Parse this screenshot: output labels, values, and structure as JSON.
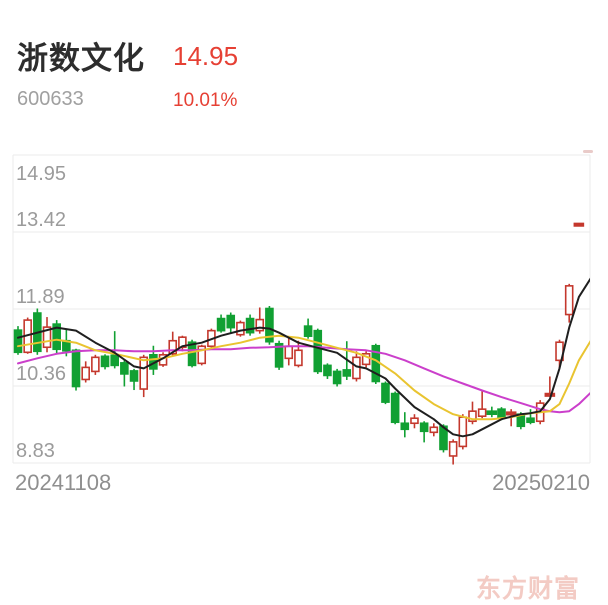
{
  "header": {
    "stock_name": "浙数文化",
    "price": "14.95",
    "code": "600633",
    "change_percent": "10.01%"
  },
  "watermark_text": "东方财富",
  "colors": {
    "up": "#c4382d",
    "down": "#11a033",
    "ma5": "#1f1f1f",
    "ma10": "#e9c430",
    "ma20": "#cb3fcb",
    "grid": "#ebebeb",
    "axis_text": "#9b9b9b",
    "price_red": "#e64034",
    "watermark": "#f3cbc4",
    "faint_marker": "#e9cbc9"
  },
  "chart_data": {
    "type": "candlestick",
    "title": "日K 浙数文化 600633",
    "x_axis": {
      "left_label": "20241108",
      "right_label": "20250210"
    },
    "y_axis": {
      "ticks": [
        "14.95",
        "13.42",
        "11.89",
        "10.36",
        "8.83"
      ],
      "min": 8.83,
      "max": 14.95
    },
    "grid": true,
    "candles_ohlc": [
      [
        11.47,
        11.55,
        10.98,
        11.03
      ],
      [
        11.03,
        11.72,
        11.0,
        11.67
      ],
      [
        11.81,
        11.9,
        10.98,
        11.05
      ],
      [
        11.13,
        11.73,
        11.03,
        11.53
      ],
      [
        11.59,
        11.67,
        11.0,
        11.09
      ],
      [
        11.26,
        11.5,
        10.95,
        11.06
      ],
      [
        11.07,
        11.1,
        10.27,
        10.35
      ],
      [
        10.49,
        10.85,
        10.43,
        10.73
      ],
      [
        10.65,
        10.98,
        10.58,
        10.93
      ],
      [
        10.95,
        10.99,
        10.69,
        10.75
      ],
      [
        10.97,
        11.45,
        10.71,
        10.77
      ],
      [
        10.82,
        10.88,
        10.35,
        10.6
      ],
      [
        10.66,
        10.7,
        10.28,
        10.46
      ],
      [
        10.3,
        10.98,
        10.14,
        10.93
      ],
      [
        10.98,
        11.16,
        10.58,
        10.7
      ],
      [
        10.78,
        11.03,
        10.74,
        10.98
      ],
      [
        11.0,
        11.44,
        10.96,
        11.26
      ],
      [
        11.13,
        11.36,
        11.05,
        11.33
      ],
      [
        11.23,
        11.28,
        10.73,
        10.77
      ],
      [
        10.81,
        11.18,
        10.77,
        11.15
      ],
      [
        11.15,
        11.5,
        11.1,
        11.46
      ],
      [
        11.7,
        11.78,
        11.42,
        11.46
      ],
      [
        11.76,
        11.82,
        11.4,
        11.52
      ],
      [
        11.38,
        11.66,
        11.34,
        11.62
      ],
      [
        11.7,
        11.78,
        11.36,
        11.42
      ],
      [
        11.46,
        11.92,
        11.4,
        11.68
      ],
      [
        11.9,
        11.95,
        11.18,
        11.24
      ],
      [
        11.2,
        11.26,
        10.68,
        10.74
      ],
      [
        10.91,
        11.32,
        10.77,
        11.15
      ],
      [
        10.77,
        11.26,
        10.73,
        11.07
      ],
      [
        11.55,
        11.7,
        11.3,
        11.35
      ],
      [
        11.46,
        11.5,
        10.6,
        10.65
      ],
      [
        10.77,
        10.81,
        10.5,
        10.57
      ],
      [
        10.65,
        10.7,
        10.35,
        10.41
      ],
      [
        10.68,
        11.25,
        10.48,
        10.56
      ],
      [
        10.51,
        11.05,
        10.45,
        10.93
      ],
      [
        10.79,
        11.05,
        10.73,
        11.0
      ],
      [
        11.16,
        11.2,
        10.4,
        10.45
      ],
      [
        10.41,
        10.45,
        10.0,
        10.04
      ],
      [
        10.21,
        10.25,
        9.6,
        9.64
      ],
      [
        9.62,
        9.84,
        9.34,
        9.5
      ],
      [
        9.62,
        9.8,
        9.52,
        9.72
      ],
      [
        9.62,
        9.66,
        9.24,
        9.46
      ],
      [
        9.44,
        9.62,
        9.36,
        9.54
      ],
      [
        9.56,
        9.6,
        9.04,
        9.1
      ],
      [
        8.97,
        9.3,
        8.8,
        9.25
      ],
      [
        9.16,
        9.8,
        9.1,
        9.74
      ],
      [
        9.66,
        10.05,
        9.6,
        9.86
      ],
      [
        9.76,
        10.27,
        9.72,
        9.9
      ],
      [
        9.86,
        9.95,
        9.74,
        9.8
      ],
      [
        9.9,
        9.94,
        9.68,
        9.72
      ],
      [
        9.82,
        9.9,
        9.56,
        9.84
      ],
      [
        9.8,
        9.84,
        9.5,
        9.56
      ],
      [
        9.72,
        9.9,
        9.6,
        9.64
      ],
      [
        9.66,
        10.08,
        9.6,
        10.02
      ],
      [
        10.18,
        10.55,
        10.15,
        10.21
      ],
      [
        10.87,
        11.28,
        10.71,
        11.23
      ],
      [
        11.78,
        12.39,
        11.62,
        12.35
      ],
      [
        13.59,
        13.59,
        13.59,
        13.59
      ]
    ],
    "ma_lines": [
      {
        "name": "ma-20",
        "color_key": "ma20",
        "points": [
          [
            0,
            10.81
          ],
          [
            2,
            10.91
          ],
          [
            4,
            11.0
          ],
          [
            6,
            11.05
          ],
          [
            8,
            11.07
          ],
          [
            10,
            11.07
          ],
          [
            12,
            11.05
          ],
          [
            14,
            11.05
          ],
          [
            16,
            11.07
          ],
          [
            18,
            11.07
          ],
          [
            20,
            11.09
          ],
          [
            22,
            11.09
          ],
          [
            24,
            11.12
          ],
          [
            26,
            11.13
          ],
          [
            28,
            11.15
          ],
          [
            30,
            11.15
          ],
          [
            32,
            11.12
          ],
          [
            34,
            11.09
          ],
          [
            36,
            11.07
          ],
          [
            38,
            11.0
          ],
          [
            40,
            10.87
          ],
          [
            42,
            10.71
          ],
          [
            44,
            10.55
          ],
          [
            46,
            10.41
          ],
          [
            48,
            10.27
          ],
          [
            50,
            10.14
          ],
          [
            52,
            10.02
          ],
          [
            54,
            9.9
          ],
          [
            55,
            9.86
          ],
          [
            56,
            9.84
          ],
          [
            57,
            9.86
          ],
          [
            58,
            10.0
          ],
          [
            59.3,
            10.24
          ]
        ]
      },
      {
        "name": "ma-10",
        "color_key": "ma10",
        "points": [
          [
            0,
            11.15
          ],
          [
            4,
            11.28
          ],
          [
            6,
            11.22
          ],
          [
            8,
            11.07
          ],
          [
            10,
            11.0
          ],
          [
            13,
            10.87
          ],
          [
            15,
            10.91
          ],
          [
            17,
            11.0
          ],
          [
            19,
            11.07
          ],
          [
            21,
            11.15
          ],
          [
            23,
            11.22
          ],
          [
            25,
            11.32
          ],
          [
            27,
            11.36
          ],
          [
            29,
            11.32
          ],
          [
            31,
            11.22
          ],
          [
            33,
            11.12
          ],
          [
            35,
            11.02
          ],
          [
            37,
            10.87
          ],
          [
            39,
            10.61
          ],
          [
            41,
            10.27
          ],
          [
            43,
            10.0
          ],
          [
            45,
            9.8
          ],
          [
            47,
            9.7
          ],
          [
            49,
            9.7
          ],
          [
            51,
            9.74
          ],
          [
            53,
            9.82
          ],
          [
            55,
            9.86
          ],
          [
            56,
            10.0
          ],
          [
            57,
            10.41
          ],
          [
            58,
            10.87
          ],
          [
            59.3,
            11.28
          ]
        ]
      },
      {
        "name": "ma-5",
        "color_key": "ma5",
        "points": [
          [
            0,
            11.32
          ],
          [
            4,
            11.52
          ],
          [
            6,
            11.46
          ],
          [
            8,
            11.22
          ],
          [
            10,
            11.02
          ],
          [
            12,
            10.75
          ],
          [
            13,
            10.71
          ],
          [
            15,
            10.91
          ],
          [
            17,
            11.15
          ],
          [
            19,
            11.22
          ],
          [
            21,
            11.36
          ],
          [
            23,
            11.46
          ],
          [
            25,
            11.52
          ],
          [
            26,
            11.5
          ],
          [
            27,
            11.42
          ],
          [
            29,
            11.22
          ],
          [
            31,
            11.12
          ],
          [
            33,
            11.02
          ],
          [
            35,
            10.75
          ],
          [
            36,
            10.71
          ],
          [
            38,
            10.51
          ],
          [
            39,
            10.31
          ],
          [
            41,
            9.94
          ],
          [
            43,
            9.7
          ],
          [
            44,
            9.54
          ],
          [
            45,
            9.4
          ],
          [
            46,
            9.36
          ],
          [
            47,
            9.4
          ],
          [
            49,
            9.6
          ],
          [
            50,
            9.7
          ],
          [
            52,
            9.8
          ],
          [
            53,
            9.82
          ],
          [
            54,
            9.86
          ],
          [
            55,
            10.1
          ],
          [
            56,
            10.71
          ],
          [
            57,
            11.52
          ],
          [
            58,
            12.13
          ],
          [
            59.3,
            12.52
          ]
        ]
      }
    ],
    "current_day_marker_value": 13.59
  }
}
